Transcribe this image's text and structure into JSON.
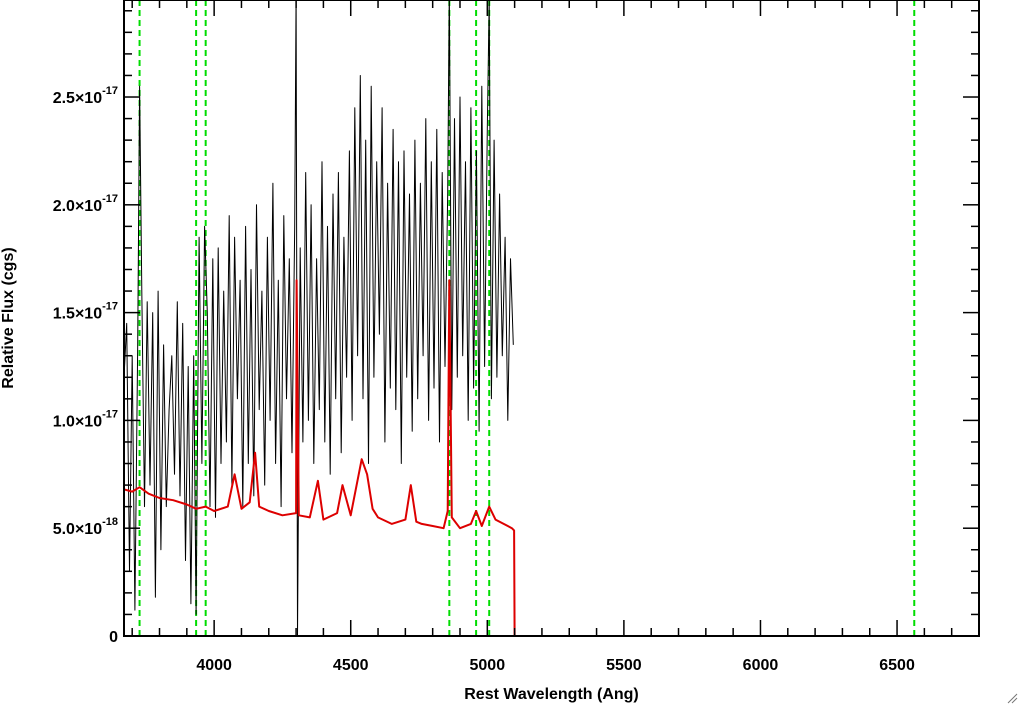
{
  "chart_data": {
    "type": "line",
    "title": "",
    "xlabel": "Rest Wavelength (Ang)",
    "ylabel": "Relative Flux (cgs)",
    "xlim": [
      3670,
      6800
    ],
    "ylim": [
      0,
      2.95e-17
    ],
    "x_ticks": [
      {
        "value": 4000,
        "label": "4000"
      },
      {
        "value": 4500,
        "label": "4500"
      },
      {
        "value": 5000,
        "label": "5000"
      },
      {
        "value": 5500,
        "label": "5500"
      },
      {
        "value": 6000,
        "label": "6000"
      },
      {
        "value": 6500,
        "label": "6500"
      }
    ],
    "y_ticks": [
      {
        "value": 0,
        "mantissa": "0",
        "exponent": ""
      },
      {
        "value": 5e-18,
        "mantissa": "5.0×10",
        "exponent": "-18"
      },
      {
        "value": 1e-17,
        "mantissa": "1.0×10",
        "exponent": "-17"
      },
      {
        "value": 1.5e-17,
        "mantissa": "1.5×10",
        "exponent": "-17"
      },
      {
        "value": 2e-17,
        "mantissa": "2.0×10",
        "exponent": "-17"
      },
      {
        "value": 2.5e-17,
        "mantissa": "2.5×10",
        "exponent": "-17"
      }
    ],
    "grid": false,
    "legend": "none",
    "reference_lines": {
      "color": "#00dd00",
      "x": [
        3727,
        3934,
        3969,
        4861,
        4959,
        5007,
        6563
      ]
    },
    "series": [
      {
        "color": "#000000",
        "x": [
          3670,
          3680,
          3690,
          3700,
          3710,
          3720,
          3727,
          3735,
          3745,
          3755,
          3765,
          3775,
          3785,
          3795,
          3805,
          3815,
          3825,
          3835,
          3845,
          3855,
          3865,
          3875,
          3885,
          3895,
          3905,
          3915,
          3925,
          3934,
          3945,
          3955,
          3965,
          3975,
          3985,
          3995,
          4005,
          4015,
          4025,
          4035,
          4045,
          4055,
          4065,
          4075,
          4085,
          4095,
          4105,
          4115,
          4125,
          4135,
          4145,
          4155,
          4165,
          4175,
          4185,
          4195,
          4205,
          4215,
          4225,
          4235,
          4245,
          4255,
          4265,
          4275,
          4285,
          4295,
          4300,
          4305,
          4315,
          4325,
          4335,
          4345,
          4355,
          4365,
          4375,
          4385,
          4395,
          4405,
          4415,
          4425,
          4435,
          4445,
          4455,
          4465,
          4475,
          4485,
          4495,
          4505,
          4515,
          4525,
          4535,
          4545,
          4555,
          4565,
          4575,
          4585,
          4595,
          4605,
          4615,
          4625,
          4635,
          4645,
          4655,
          4665,
          4675,
          4685,
          4695,
          4705,
          4715,
          4725,
          4735,
          4745,
          4755,
          4765,
          4775,
          4785,
          4795,
          4805,
          4815,
          4825,
          4835,
          4845,
          4855,
          4861,
          4870,
          4880,
          4890,
          4900,
          4910,
          4920,
          4930,
          4940,
          4950,
          4960,
          4970,
          4980,
          4990,
          5000,
          5007,
          5015,
          5025,
          5035,
          5045,
          5055,
          5065,
          5075,
          5085,
          5095
        ],
        "y": [
          1.2e-17,
          1.45e-17,
          3e-18,
          1.3e-17,
          1.2e-18,
          1.35e-17,
          2.55e-17,
          1.6e-17,
          6e-18,
          1.55e-17,
          7e-18,
          1.5e-17,
          1.8e-18,
          1.6e-17,
          4e-18,
          1.35e-17,
          6e-18,
          1.05e-17,
          1.3e-17,
          7.5e-18,
          1.55e-17,
          6.5e-18,
          1.45e-17,
          3.5e-18,
          1.25e-17,
          1.5e-18,
          1.3e-17,
          1e-18,
          1.85e-17,
          8e-18,
          1.9e-17,
          1.5e-17,
          6e-18,
          1.75e-17,
          5.5e-18,
          1.8e-17,
          8e-18,
          1.6e-17,
          9e-18,
          1.95e-17,
          7e-18,
          1.85e-17,
          1.1e-17,
          1.65e-17,
          6e-18,
          1.9e-17,
          8e-18,
          1.7e-17,
          6.5e-18,
          2e-17,
          1.05e-17,
          1.6e-17,
          7e-18,
          1.85e-17,
          1e-17,
          2.1e-17,
          8e-18,
          1.65e-17,
          6e-18,
          1.95e-17,
          1.1e-17,
          1.75e-17,
          8.5e-18,
          1.9e-17,
          3e-17,
          0,
          1.8e-17,
          9e-18,
          2.15e-17,
          1e-17,
          2e-17,
          8e-18,
          1.75e-17,
          1.05e-17,
          2.2e-17,
          9e-18,
          1.9e-17,
          7.5e-18,
          2.05e-17,
          1.1e-17,
          2.15e-17,
          8.5e-18,
          1.85e-17,
          1.2e-17,
          2.25e-17,
          1e-17,
          2.45e-17,
          1.3e-17,
          2.6e-17,
          1.1e-17,
          2.3e-17,
          8e-18,
          2.55e-17,
          1.2e-17,
          2.2e-17,
          1.4e-17,
          2.45e-17,
          9e-18,
          2.1e-17,
          1.15e-17,
          2.35e-17,
          1.05e-17,
          2.2e-17,
          8e-18,
          2.25e-17,
          1.2e-17,
          2.05e-17,
          9.5e-18,
          2.3e-17,
          1.1e-17,
          2.1e-17,
          1.3e-17,
          2.4e-17,
          1e-17,
          2.2e-17,
          1.15e-17,
          2.35e-17,
          9e-18,
          2.15e-17,
          1.25e-17,
          2.05e-17,
          3e-17,
          1.05e-17,
          2.4e-17,
          1.2e-17,
          2.5e-17,
          1.3e-17,
          2.2e-17,
          1e-17,
          2.45e-17,
          1.15e-17,
          2.25e-17,
          9.5e-18,
          2.55e-17,
          1.25e-17,
          2.35e-17,
          2.95e-17,
          1.1e-17,
          2.3e-17,
          1.2e-17,
          2.05e-17,
          1.3e-17,
          1.85e-17,
          1e-17,
          1.75e-17,
          1.35e-17
        ]
      },
      {
        "color": "#dd0000",
        "x": [
          3670,
          3700,
          3727,
          3760,
          3800,
          3850,
          3900,
          3934,
          3969,
          4000,
          4050,
          4075,
          4100,
          4130,
          4150,
          4165,
          4200,
          4250,
          4300,
          4302,
          4310,
          4350,
          4380,
          4400,
          4450,
          4470,
          4500,
          4540,
          4560,
          4580,
          4600,
          4650,
          4700,
          4720,
          4740,
          4760,
          4800,
          4840,
          4855,
          4861,
          4870,
          4900,
          4940,
          4959,
          4980,
          5007,
          5030,
          5060,
          5090,
          5098,
          5100,
          5105,
          5200,
          5400,
          5600,
          5800,
          6000,
          6200,
          6400,
          6563,
          6600,
          6800
        ],
        "y": [
          6.8e-18,
          6.7e-18,
          6.9e-18,
          6.6e-18,
          6.4e-18,
          6.3e-18,
          6.1e-18,
          5.9e-18,
          6e-18,
          5.8e-18,
          6e-18,
          7.5e-18,
          5.9e-18,
          6.2e-18,
          8.5e-18,
          6e-18,
          5.8e-18,
          5.6e-18,
          5.7e-18,
          1.65e-17,
          5.6e-18,
          5.5e-18,
          7.2e-18,
          5.4e-18,
          5.7e-18,
          7e-18,
          5.6e-18,
          8.2e-18,
          7.5e-18,
          5.9e-18,
          5.5e-18,
          5.2e-18,
          5.4e-18,
          7e-18,
          5.3e-18,
          5.2e-18,
          5.1e-18,
          5e-18,
          5.8e-18,
          1.65e-17,
          5.5e-18,
          5e-18,
          5.2e-18,
          5.8e-18,
          5.1e-18,
          6e-18,
          5.4e-18,
          5.2e-18,
          5e-18,
          4.9e-18,
          0,
          0,
          0,
          0,
          0,
          0,
          0,
          0,
          0,
          0,
          0,
          0
        ]
      }
    ]
  },
  "window": {
    "resize_grip_icon": "resize-grip-icon"
  }
}
